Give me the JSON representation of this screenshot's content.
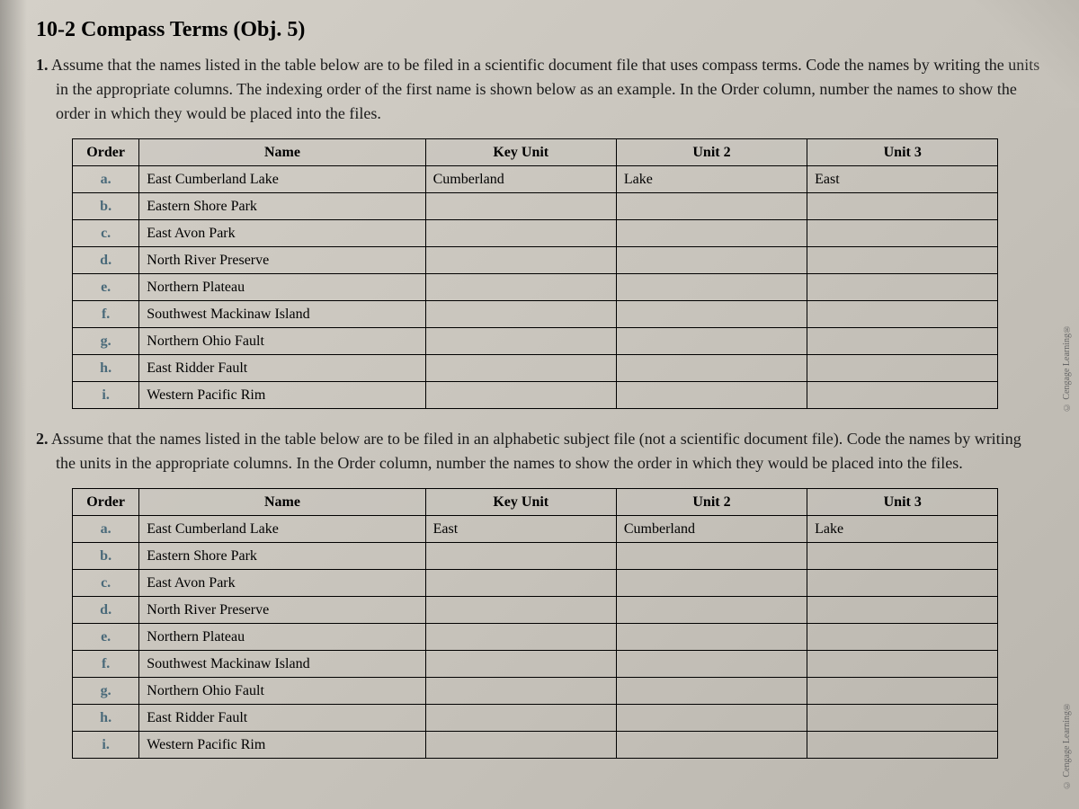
{
  "heading": "10-2 Compass Terms (Obj. 5)",
  "question1": {
    "number": "1.",
    "text": "Assume that the names listed in the table below are to be filed in a scientific document file that uses compass terms. Code the names by writing the units in the appropriate columns. The indexing order of the first name is shown below as an example. In the Order column, number the names to show the order in which they would be placed into the files."
  },
  "question2": {
    "number": "2.",
    "text": "Assume that the names listed in the table below are to be filed in an alphabetic subject file (not a scientific document file). Code the names by writing the units in the appropriate columns. In the Order column, number the names to show the order in which they would be placed into the files."
  },
  "table_headers": {
    "order": "Order",
    "name": "Name",
    "keyunit": "Key Unit",
    "unit2": "Unit 2",
    "unit3": "Unit 3"
  },
  "table1_rows": [
    {
      "letter": "a.",
      "name": "East Cumberland Lake",
      "keyunit": "Cumberland",
      "unit2": "Lake",
      "unit3": "East"
    },
    {
      "letter": "b.",
      "name": "Eastern Shore Park",
      "keyunit": "",
      "unit2": "",
      "unit3": ""
    },
    {
      "letter": "c.",
      "name": "East Avon Park",
      "keyunit": "",
      "unit2": "",
      "unit3": ""
    },
    {
      "letter": "d.",
      "name": "North River Preserve",
      "keyunit": "",
      "unit2": "",
      "unit3": ""
    },
    {
      "letter": "e.",
      "name": "Northern Plateau",
      "keyunit": "",
      "unit2": "",
      "unit3": ""
    },
    {
      "letter": "f.",
      "name": "Southwest Mackinaw Island",
      "keyunit": "",
      "unit2": "",
      "unit3": ""
    },
    {
      "letter": "g.",
      "name": "Northern Ohio Fault",
      "keyunit": "",
      "unit2": "",
      "unit3": ""
    },
    {
      "letter": "h.",
      "name": "East Ridder Fault",
      "keyunit": "",
      "unit2": "",
      "unit3": ""
    },
    {
      "letter": "i.",
      "name": "Western Pacific Rim",
      "keyunit": "",
      "unit2": "",
      "unit3": ""
    }
  ],
  "table2_rows": [
    {
      "letter": "a.",
      "name": "East Cumberland Lake",
      "keyunit": "East",
      "unit2": "Cumberland",
      "unit3": "Lake"
    },
    {
      "letter": "b.",
      "name": "Eastern Shore Park",
      "keyunit": "",
      "unit2": "",
      "unit3": ""
    },
    {
      "letter": "c.",
      "name": "East Avon Park",
      "keyunit": "",
      "unit2": "",
      "unit3": ""
    },
    {
      "letter": "d.",
      "name": "North River Preserve",
      "keyunit": "",
      "unit2": "",
      "unit3": ""
    },
    {
      "letter": "e.",
      "name": "Northern Plateau",
      "keyunit": "",
      "unit2": "",
      "unit3": ""
    },
    {
      "letter": "f.",
      "name": "Southwest Mackinaw Island",
      "keyunit": "",
      "unit2": "",
      "unit3": ""
    },
    {
      "letter": "g.",
      "name": "Northern Ohio Fault",
      "keyunit": "",
      "unit2": "",
      "unit3": ""
    },
    {
      "letter": "h.",
      "name": "East Ridder Fault",
      "keyunit": "",
      "unit2": "",
      "unit3": ""
    },
    {
      "letter": "i.",
      "name": "Western Pacific Rim",
      "keyunit": "",
      "unit2": "",
      "unit3": ""
    }
  ],
  "copyright": "© Cengage Learning®",
  "styling": {
    "background_colors": [
      "#d4d0c8",
      "#c8c4bc",
      "#bab6ae"
    ],
    "heading_fontsize": 24,
    "body_fontsize": 18,
    "table_fontsize": 16,
    "border_color": "#000000",
    "letter_color": "#4a6a7a",
    "text_color": "#1a1a1a"
  }
}
